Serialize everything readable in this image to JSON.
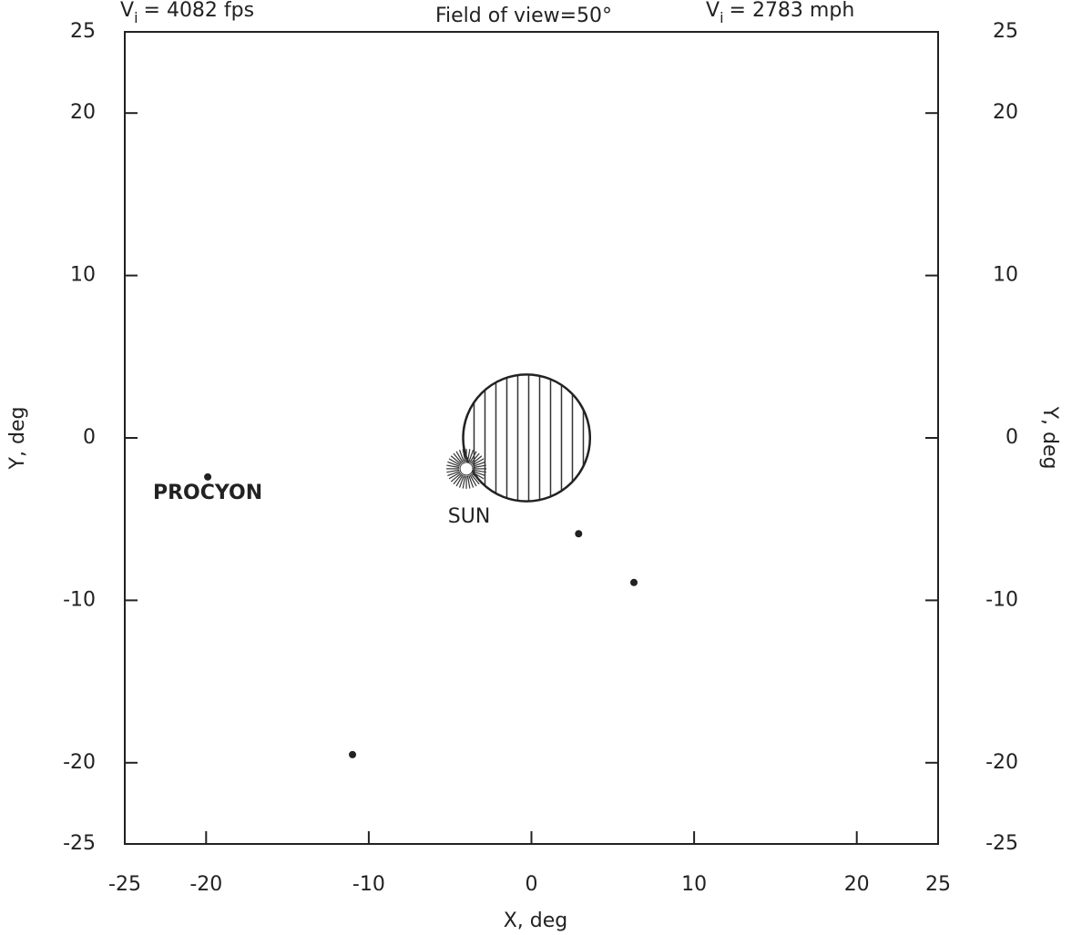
{
  "chart_data": {
    "type": "scatter",
    "header_left": {
      "symbol": "V",
      "subscript": "i",
      "text": "= 4082 fps"
    },
    "title": "Field of view=50°",
    "header_right": {
      "symbol": "V",
      "subscript": "i",
      "text": "= 2783 mph"
    },
    "x_label": "X, deg",
    "y_label": "Y, deg",
    "y2_label": "Y, deg",
    "xlim": [
      -25,
      25
    ],
    "xticks": [
      -25,
      -20,
      -10,
      0,
      10,
      20,
      25
    ],
    "ylim": [
      -25,
      25
    ],
    "yticks": [
      25,
      20,
      10,
      0,
      -10,
      -20,
      -25
    ],
    "y2lim": [
      -25,
      25
    ],
    "y2ticks": [
      25,
      20,
      10,
      0,
      -10,
      -20,
      -25
    ],
    "x": [
      -19.9,
      2.9,
      6.3,
      -11
    ],
    "y": [
      -2.4,
      -5.9,
      -8.9,
      -19.5
    ],
    "point_labels": [
      "PROCYON",
      null,
      null,
      null
    ],
    "color": "#222222",
    "sun": {
      "x": -4.0,
      "y": -1.9,
      "label": "SUN"
    },
    "moon": {
      "x": -0.3,
      "y": 0,
      "radius": 3.9
    }
  }
}
